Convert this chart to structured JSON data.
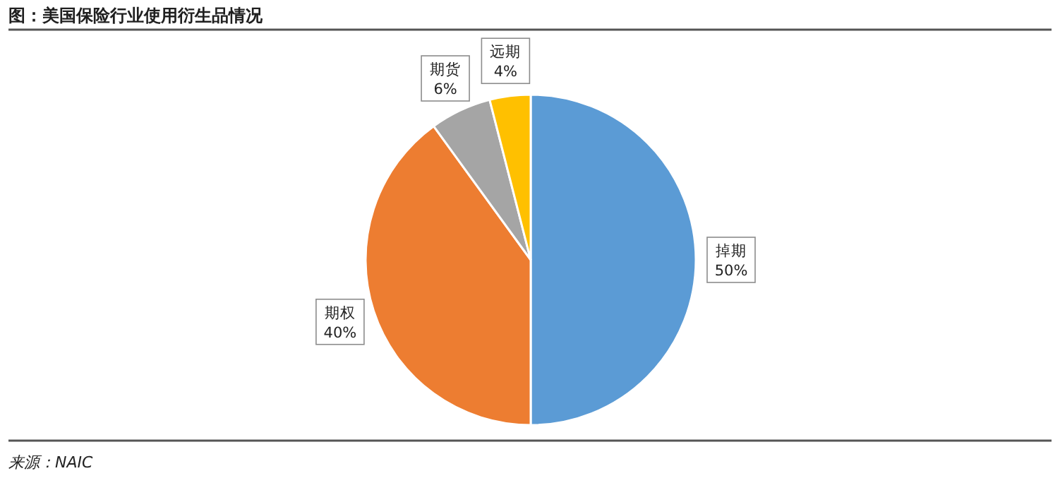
{
  "chart_data": {
    "type": "pie",
    "title": "图：美国保险行业使用衍生品情况",
    "categories": [
      "掉期",
      "期权",
      "期货",
      "远期"
    ],
    "values": [
      50,
      40,
      6,
      4
    ],
    "value_labels": [
      "50%",
      "40%",
      "6%",
      "4%"
    ],
    "colors": [
      "#5b9bd5",
      "#ed7d31",
      "#a5a5a5",
      "#ffc000"
    ],
    "legend": false,
    "annotations": [
      "来源：NAIC"
    ]
  }
}
